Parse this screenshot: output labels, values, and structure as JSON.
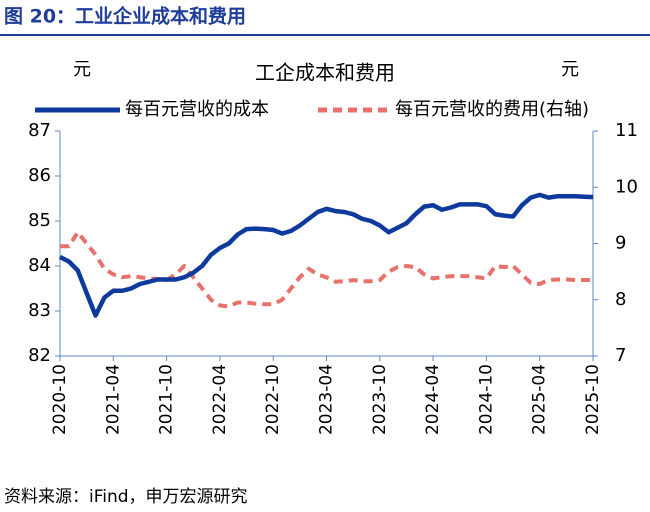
{
  "header": {
    "title": "图 20：工业企业成本和费用"
  },
  "chart_data": {
    "type": "line",
    "title": "工企成本和费用",
    "y_unit": "元",
    "y2_unit": "元",
    "categories": [
      "2020-10",
      null,
      null,
      null,
      null,
      null,
      "2021-04",
      null,
      null,
      null,
      null,
      null,
      "2021-10",
      null,
      null,
      null,
      null,
      null,
      "2022-04",
      null,
      null,
      null,
      null,
      null,
      "2022-10",
      null,
      null,
      null,
      null,
      null,
      "2023-04",
      null,
      null,
      null,
      null,
      null,
      "2023-10",
      null,
      null,
      null,
      null,
      null,
      "2024-04",
      null,
      null,
      null,
      null,
      null,
      "2024-10",
      null,
      null,
      null,
      null,
      null,
      "2025-04",
      null,
      null,
      null,
      null,
      null,
      "2025-10"
    ],
    "series": [
      {
        "name": "每百元营收的成本",
        "color": "#0d3a9c",
        "dashed": false,
        "values": [
          84.2,
          84.1,
          83.9,
          83.4,
          82.9,
          83.3,
          83.45,
          83.45,
          83.5,
          83.6,
          83.65,
          83.7,
          83.7,
          83.7,
          83.75,
          83.85,
          84.0,
          84.25,
          84.4,
          84.5,
          84.7,
          84.82,
          84.83,
          84.82,
          84.8,
          84.72,
          84.78,
          84.9,
          85.05,
          85.2,
          85.27,
          85.22,
          85.2,
          85.15,
          85.05,
          85.0,
          84.9,
          84.75,
          84.85,
          84.95,
          85.15,
          85.32,
          85.35,
          85.25,
          85.3,
          85.37,
          85.37,
          85.37,
          85.33,
          85.15,
          85.12,
          85.1,
          85.35,
          85.52,
          85.58,
          85.52,
          85.55,
          85.55,
          85.55,
          85.54,
          85.53
        ]
      },
      {
        "name": "每百元营收的费用(右轴)",
        "color": "#e8716b",
        "dashed": true,
        "axis": "y2",
        "values": [
          8.95,
          8.95,
          9.2,
          9.0,
          8.8,
          8.55,
          8.45,
          8.4,
          8.42,
          8.4,
          8.38,
          8.37,
          8.35,
          8.45,
          8.6,
          8.4,
          8.2,
          8.0,
          7.9,
          7.88,
          7.95,
          7.95,
          7.93,
          7.92,
          7.92,
          8.0,
          8.2,
          8.4,
          8.55,
          8.45,
          8.4,
          8.32,
          8.33,
          8.35,
          8.33,
          8.33,
          8.35,
          8.5,
          8.58,
          8.6,
          8.58,
          8.45,
          8.38,
          8.4,
          8.42,
          8.42,
          8.42,
          8.4,
          8.38,
          8.6,
          8.58,
          8.6,
          8.45,
          8.3,
          8.28,
          8.35,
          8.36,
          8.36,
          8.35,
          8.35,
          8.35
        ]
      }
    ],
    "ylim": [
      82,
      87
    ],
    "yticks": [
      82,
      83,
      84,
      85,
      86,
      87
    ],
    "y2lim": [
      7,
      11
    ],
    "y2ticks": [
      7,
      8,
      9,
      10,
      11
    ]
  },
  "source": "资料来源：iFind，申万宏源研究"
}
